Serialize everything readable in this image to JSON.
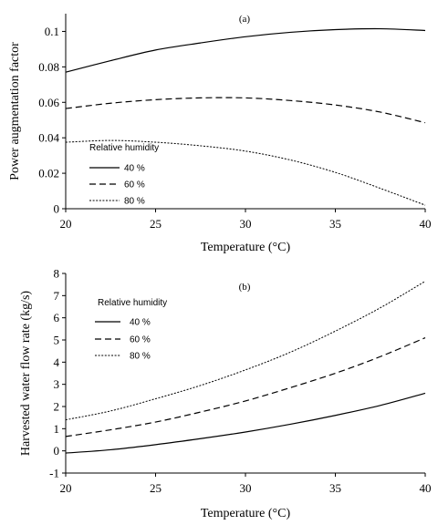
{
  "chart_data": [
    {
      "type": "line",
      "panel_label": "(a)",
      "xlabel": "Temperature  (°C)",
      "ylabel": "Power  augmentation  factor",
      "xlim": [
        20,
        40
      ],
      "ylim": [
        0,
        0.11
      ],
      "xticks": [
        20,
        25,
        30,
        35,
        40
      ],
      "yticks": [
        0,
        0.02,
        0.04,
        0.06,
        0.08,
        0.1
      ],
      "ytick_labels": [
        "0",
        "0.02",
        "0.04",
        "0.06",
        "0.08",
        "0.1"
      ],
      "legend_title": "Relative humidity",
      "grid": false,
      "x": [
        20,
        22.5,
        25,
        27.5,
        30,
        32.5,
        35,
        37.5,
        40
      ],
      "series": [
        {
          "name": "40 %",
          "dash": "solid",
          "values": [
            0.077,
            0.0835,
            0.0895,
            0.0935,
            0.097,
            0.0995,
            0.101,
            0.1015,
            0.1005
          ]
        },
        {
          "name": "60 %",
          "dash": "dashed",
          "values": [
            0.0565,
            0.0595,
            0.0615,
            0.0625,
            0.0625,
            0.061,
            0.0585,
            0.0545,
            0.0485
          ]
        },
        {
          "name": "80 %",
          "dash": "dotted",
          "values": [
            0.0375,
            0.0385,
            0.0375,
            0.0355,
            0.0325,
            0.0275,
            0.0205,
            0.0115,
            0.002
          ]
        }
      ]
    },
    {
      "type": "line",
      "panel_label": "(b)",
      "xlabel": "Temperature  (°C)",
      "ylabel": "Harvested  water  flow  rate  (kg/s)",
      "xlim": [
        20,
        40
      ],
      "ylim": [
        -1,
        8
      ],
      "xticks": [
        20,
        25,
        30,
        35,
        40
      ],
      "yticks": [
        -1,
        0,
        1,
        2,
        3,
        4,
        5,
        6,
        7,
        8
      ],
      "ytick_labels": [
        "-1",
        "0",
        "1",
        "2",
        "3",
        "4",
        "5",
        "6",
        "7",
        "8"
      ],
      "legend_title": "Relative humidity",
      "grid": false,
      "x": [
        20,
        22.5,
        25,
        27.5,
        30,
        32.5,
        35,
        37.5,
        40
      ],
      "series": [
        {
          "name": "40 %",
          "dash": "solid",
          "values": [
            -0.1,
            0.05,
            0.28,
            0.55,
            0.85,
            1.2,
            1.6,
            2.05,
            2.6
          ]
        },
        {
          "name": "60 %",
          "dash": "dashed",
          "values": [
            0.65,
            0.95,
            1.3,
            1.75,
            2.25,
            2.85,
            3.5,
            4.25,
            5.1
          ]
        },
        {
          "name": "80 %",
          "dash": "dotted",
          "values": [
            1.4,
            1.8,
            2.35,
            2.95,
            3.65,
            4.45,
            5.4,
            6.45,
            7.65
          ]
        }
      ]
    }
  ]
}
